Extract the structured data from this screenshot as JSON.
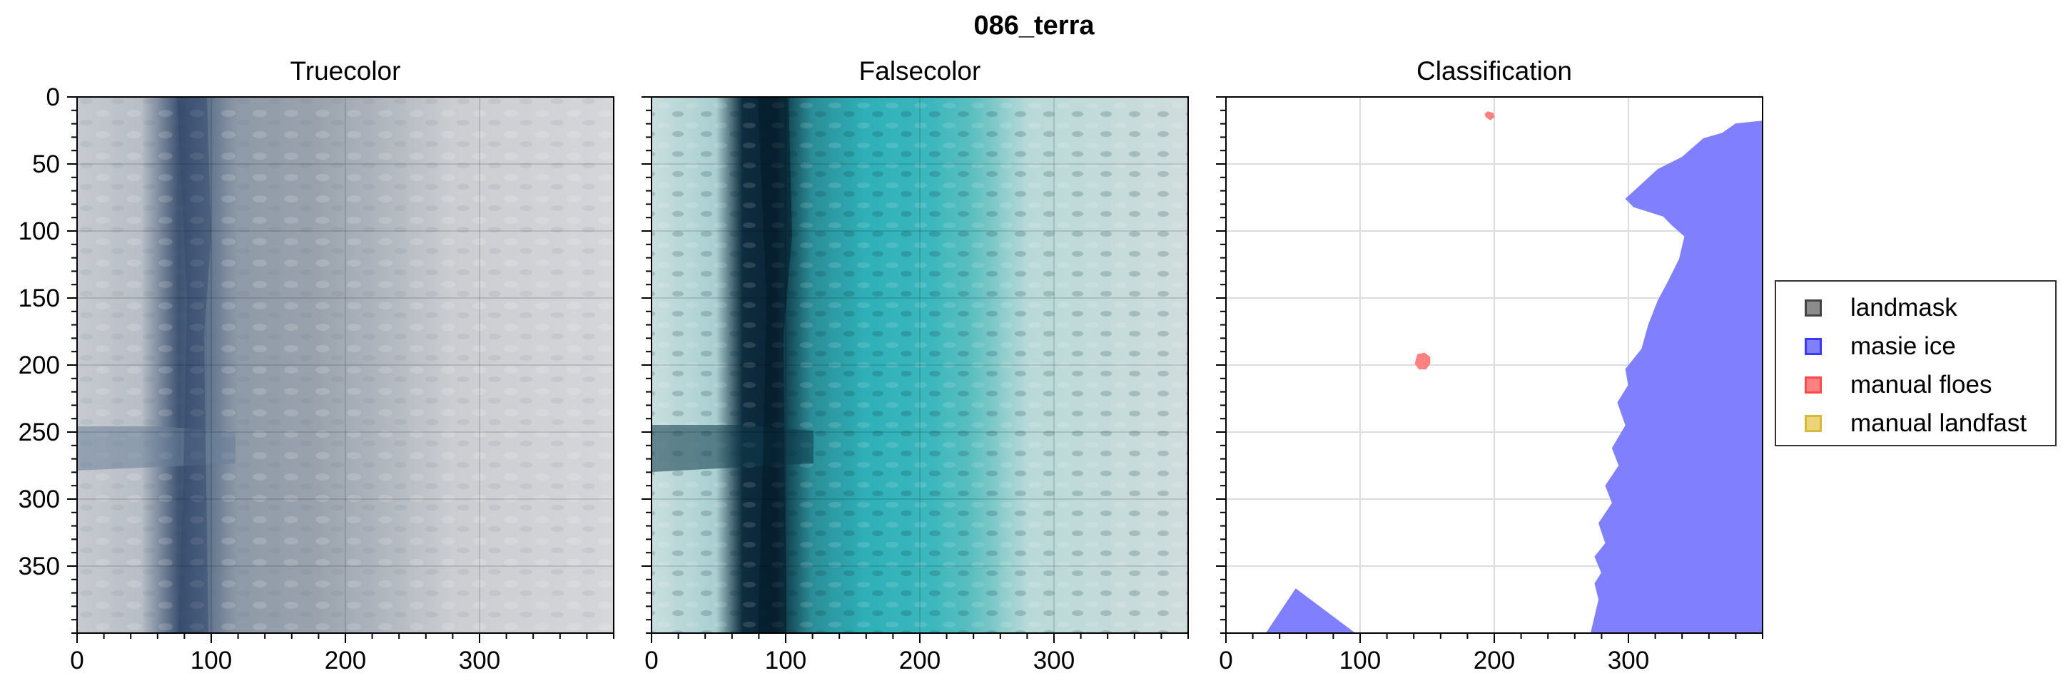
{
  "figure": {
    "suptitle": "086_terra"
  },
  "chart_data": [
    {
      "type": "image",
      "title": "Truecolor",
      "xlim": [
        0,
        400
      ],
      "ylim": [
        400,
        0
      ],
      "xticks": [
        0,
        100,
        200,
        300
      ],
      "yticks": [
        0,
        50,
        100,
        150,
        200,
        250,
        300,
        350
      ],
      "grid": true
    },
    {
      "type": "image",
      "title": "Falsecolor",
      "xlim": [
        0,
        400
      ],
      "ylim": [
        400,
        0
      ],
      "xticks": [
        0,
        100,
        200,
        300
      ],
      "yticks": [
        0,
        50,
        100,
        150,
        200,
        250,
        300,
        350
      ],
      "grid": true
    },
    {
      "type": "area",
      "title": "Classification",
      "xlim": [
        0,
        400
      ],
      "ylim": [
        400,
        0
      ],
      "xticks": [
        0,
        100,
        200,
        300
      ],
      "yticks": [
        0,
        50,
        100,
        150,
        200,
        250,
        300,
        350
      ],
      "grid": true,
      "legend_position": "right",
      "legend": [
        {
          "label": "landmask",
          "color": "#808080"
        },
        {
          "label": "masie ice",
          "color": "#8080ff"
        },
        {
          "label": "manual floes",
          "color": "#ff8080"
        },
        {
          "label": "manual landfast",
          "color": "#ecd47a"
        }
      ],
      "series": [
        {
          "name": "masie ice",
          "color": "#8080ff",
          "polygons": [
            [
              [
                30,
                400
              ],
              [
                52,
                367
              ],
              [
                96,
                400
              ]
            ],
            [
              [
                272,
                400
              ],
              [
                278,
                375
              ],
              [
                275,
                363
              ],
              [
                280,
                355
              ],
              [
                275,
                343
              ],
              [
                283,
                333
              ],
              [
                278,
                318
              ],
              [
                288,
                303
              ],
              [
                283,
                290
              ],
              [
                293,
                275
              ],
              [
                288,
                262
              ],
              [
                298,
                245
              ],
              [
                292,
                228
              ],
              [
                300,
                215
              ],
              [
                298,
                203
              ],
              [
                310,
                188
              ],
              [
                315,
                170
              ],
              [
                322,
                152
              ],
              [
                330,
                137
              ],
              [
                338,
                121
              ],
              [
                342,
                104
              ],
              [
                333,
                96
              ],
              [
                326,
                89
              ],
              [
                304,
                82
              ],
              [
                298,
                76
              ],
              [
                310,
                65
              ],
              [
                322,
                54
              ],
              [
                340,
                45
              ],
              [
                356,
                31
              ],
              [
                370,
                27
              ],
              [
                380,
                20
              ],
              [
                400,
                18
              ],
              [
                400,
                400
              ]
            ]
          ]
        },
        {
          "name": "manual floes",
          "color": "#ff8080",
          "polygons": [
            [
              [
                195,
                11
              ],
              [
                199,
                12
              ],
              [
                200,
                15
              ],
              [
                197,
                17
              ],
              [
                194,
                15
              ],
              [
                193,
                13
              ]
            ],
            [
              [
                143,
                192
              ],
              [
                148,
                191
              ],
              [
                152,
                194
              ],
              [
                152,
                199
              ],
              [
                149,
                203
              ],
              [
                144,
                203
              ],
              [
                141,
                199
              ],
              [
                142,
                195
              ]
            ]
          ]
        }
      ]
    }
  ]
}
